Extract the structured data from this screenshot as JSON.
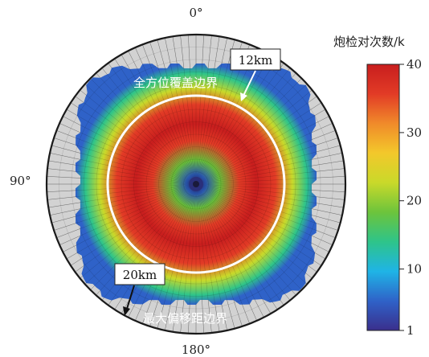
{
  "chart_data": {
    "type": "heatmap",
    "colorbar": {
      "title": "炮检对次数/k",
      "range": [
        1,
        40
      ],
      "ticks": [
        1,
        10,
        20,
        30,
        40
      ],
      "colors": [
        "#3a2f8c",
        "#2f62c8",
        "#1fb4e6",
        "#2ec48a",
        "#6cc43c",
        "#c9d92a",
        "#f3c82b",
        "#f08a2a",
        "#e23b26",
        "#c81e1e"
      ]
    },
    "angle_labels": {
      "top": "0°",
      "left": "90°",
      "bottom": "180°"
    },
    "annotations": {
      "full_coverage_label": "全方位覆盖边界",
      "full_coverage_radius": "12km",
      "max_offset_label": "最大偏移距边界",
      "max_offset_radius": "20km"
    },
    "peak_fold_region": "annulus",
    "center_value": 1
  }
}
